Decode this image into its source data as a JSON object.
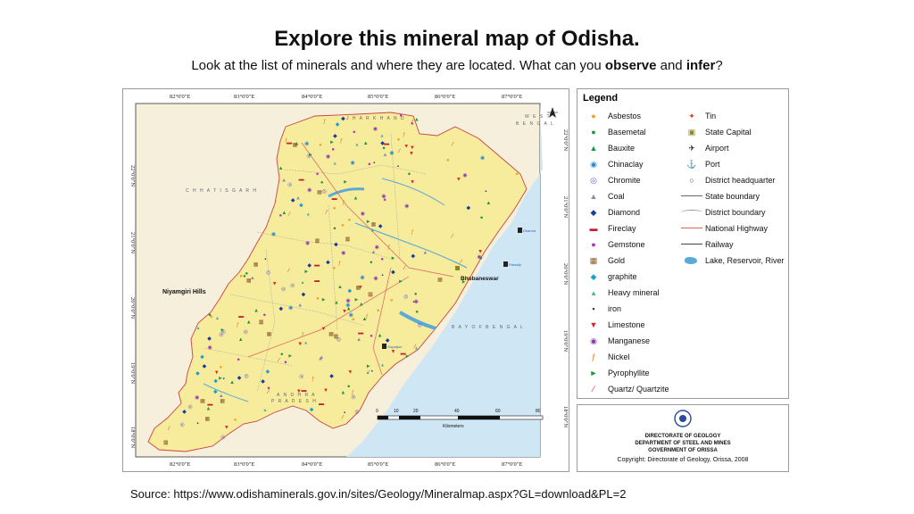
{
  "title": "Explore this mineral map of Odisha.",
  "subtitle": {
    "before": "Look at the list of minerals and where they are located. What can you ",
    "bold1": "observe",
    "middle": " and ",
    "bold2": "infer",
    "after": "?"
  },
  "map": {
    "top_longitudes": [
      "82°0'0\"E",
      "83°0'0\"E",
      "84°0'0\"E",
      "85°0'0\"E",
      "86°0'0\"E",
      "87°0'0\"E"
    ],
    "bottom_longitudes": [
      "82°0'0\"E",
      "83°0'0\"E",
      "84°0'0\"E",
      "85°0'0\"E",
      "86°0'0\"E",
      "87°0'0\"E"
    ],
    "left_latitudes": [
      "22°0'0\"N",
      "21°0'0\"N",
      "20°0'0\"N",
      "19°0'0\"N",
      "18°0'0\"N"
    ],
    "right_latitudes": [
      "22°0'0\"N",
      "21°0'0\"N",
      "20°0'0\"N",
      "19°0'0\"N",
      "18°0'0\"N"
    ],
    "regions": {
      "jharkhand": "J H A R K H A N D",
      "west_bengal_1": "W E S T",
      "west_bengal_2": "B E N G A L",
      "chhattisgarh": "C H H A T I S G A R H",
      "bay": "B A Y   O F   B E N G A L",
      "andhra_1": "A N D H R A",
      "andhra_2": "P R A D E S H"
    },
    "places": {
      "niyamgiri": "Niyamgiri Hills",
      "bhubaneswar": "Bhubaneswar",
      "paradip": "Paradip",
      "dhamra": "Dhamra",
      "gopalpur": "Gopalpur"
    },
    "scale": {
      "ticks": [
        "0",
        "10",
        "20",
        "40",
        "60",
        "80"
      ],
      "unit": "Kilometers"
    }
  },
  "legend": {
    "title": "Legend",
    "minerals": [
      {
        "label": "Asbestos",
        "symbol": "●",
        "color": "#f0a020"
      },
      {
        "label": "Basemetal",
        "symbol": "●",
        "color": "#1a9a3a"
      },
      {
        "label": "Bauxite",
        "symbol": "▲",
        "color": "#1a9a3a"
      },
      {
        "label": "Chinaclay",
        "symbol": "◉",
        "color": "#2a8ad0"
      },
      {
        "label": "Chromite",
        "symbol": "◎",
        "color": "#5a5ad0"
      },
      {
        "label": "Coal",
        "symbol": "▲",
        "color": "#8a8ab0"
      },
      {
        "label": "Diamond",
        "symbol": "◆",
        "color": "#1a3aa0"
      },
      {
        "label": "Fireclay",
        "symbol": "▬",
        "color": "#c02030"
      },
      {
        "label": "Gemstone",
        "symbol": "●",
        "color": "#b030c0"
      },
      {
        "label": "Gold",
        "symbol": "▦",
        "color": "#8a5a2a"
      },
      {
        "label": "graphite",
        "symbol": "◆",
        "color": "#20a0d0"
      },
      {
        "label": "Heavy mineral",
        "symbol": "▴",
        "color": "#3ab0a0"
      },
      {
        "label": "iron",
        "symbol": "▪",
        "color": "#1a3a80"
      },
      {
        "label": "Limestone",
        "symbol": "▼",
        "color": "#e02020"
      },
      {
        "label": "Manganese",
        "symbol": "◉",
        "color": "#8a3ab0"
      },
      {
        "label": "Nickel",
        "symbol": "ƒ",
        "color": "#e08020"
      },
      {
        "label": "Pyrophyllite",
        "symbol": "►",
        "color": "#1a9a3a"
      },
      {
        "label": "Quartz/ Quartzite",
        "symbol": "⁄",
        "color": "#e02020"
      }
    ],
    "features": [
      {
        "label": "Tin",
        "symbol": "✦",
        "color": "#e04020"
      },
      {
        "label": "State Capital",
        "symbol": "▣",
        "color": "#8a8a20"
      },
      {
        "label": "Airport",
        "symbol": "✈",
        "color": "#222"
      },
      {
        "label": "Port",
        "symbol": "⚓",
        "color": "#222"
      },
      {
        "label": "District headquarter",
        "symbol": "○",
        "color": "#444"
      },
      {
        "label": "State boundary",
        "symbol": "",
        "color": "#666"
      },
      {
        "label": "District boundary",
        "symbol": "",
        "color": "#999"
      },
      {
        "label": "National Highway",
        "symbol": "",
        "color": "#e06060"
      },
      {
        "label": "Railway",
        "symbol": "",
        "color": "#444"
      },
      {
        "label": "Lake, Reservoir, River",
        "symbol": "",
        "color": "#5aaad8"
      }
    ]
  },
  "credit": {
    "line1": "DIRECTORATE OF GEOLOGY",
    "line2": "DEPARTMENT OF STEEL AND MINES",
    "line3": "GOVERNMENT OF ORISSA",
    "copyright": "Copyright: Directorate of Geology, Orissa, 2008"
  },
  "source": "Source: https://www.odishaminerals.gov.in/sites/Geology/Mineralmap.aspx?GL=download&PL=2"
}
